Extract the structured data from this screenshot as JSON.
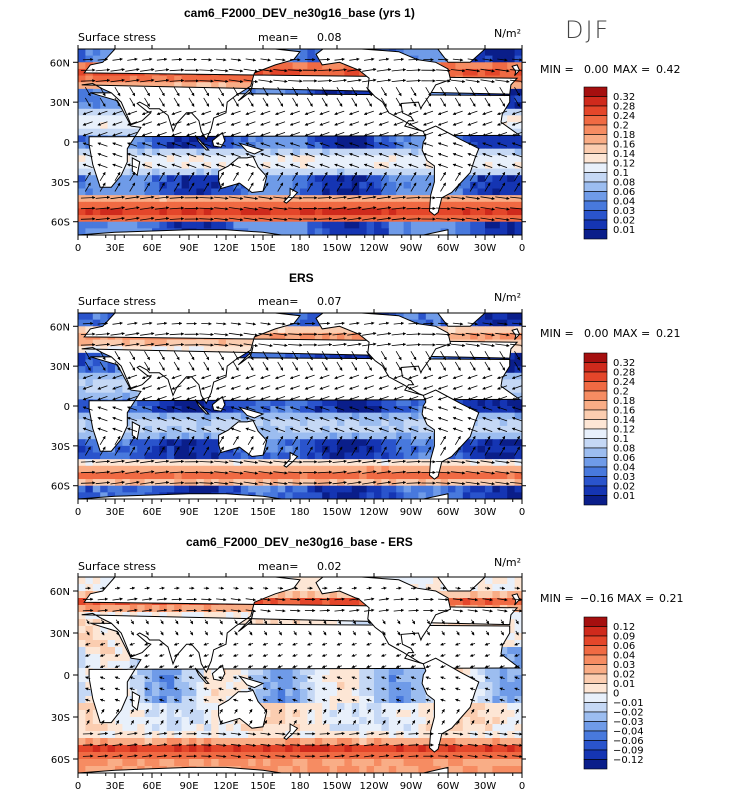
{
  "season_label": "DJF",
  "chart_data": [
    {
      "type": "heatmap",
      "title": "cam6_F2000_DEV_ne30g16_base (yrs 1)",
      "subtitle": "Surface stress",
      "mean_label": "mean=",
      "mean_value": "0.08",
      "units": "N/m²",
      "min_label": "MIN =",
      "min_value": "0.00",
      "max_label": "MAX =",
      "max_value": "0.42",
      "x_ticks": [
        "0",
        "30E",
        "60E",
        "90E",
        "120E",
        "150E",
        "180",
        "150W",
        "120W",
        "90W",
        "60W",
        "30W",
        "0"
      ],
      "y_ticks": [
        "60N",
        "30N",
        "0",
        "30S",
        "60S"
      ],
      "xlim": [
        0,
        360
      ],
      "ylim": [
        -70,
        70
      ],
      "colorbar": [
        "0.32",
        "0.28",
        "0.24",
        "0.2",
        "0.18",
        "0.16",
        "0.14",
        "0.12",
        "0.1",
        "0.08",
        "0.06",
        "0.04",
        "0.03",
        "0.02",
        "0.01"
      ],
      "colors": [
        "#a50f0f",
        "#cf2a1c",
        "#e4462a",
        "#f06a43",
        "#f68c62",
        "#f9ad86",
        "#fbcdb0",
        "#fde6d5",
        "#e8f0fb",
        "#c5d8f5",
        "#9cbdf0",
        "#6f9be8",
        "#4879dd",
        "#2a54cc",
        "#1535b3",
        "#0a1e8a"
      ]
    },
    {
      "type": "heatmap",
      "title": "ERS",
      "subtitle": "Surface stress",
      "mean_label": "mean=",
      "mean_value": "0.07",
      "units": "N/m²",
      "min_label": "MIN =",
      "min_value": "0.00",
      "max_label": "MAX =",
      "max_value": "0.21",
      "x_ticks": [
        "0",
        "30E",
        "60E",
        "90E",
        "120E",
        "150E",
        "180",
        "150W",
        "120W",
        "90W",
        "60W",
        "30W",
        "0"
      ],
      "y_ticks": [
        "60N",
        "30N",
        "0",
        "30S",
        "60S"
      ],
      "xlim": [
        0,
        360
      ],
      "ylim": [
        -70,
        70
      ],
      "colorbar": [
        "0.32",
        "0.28",
        "0.24",
        "0.2",
        "0.18",
        "0.16",
        "0.14",
        "0.12",
        "0.1",
        "0.08",
        "0.06",
        "0.04",
        "0.03",
        "0.02",
        "0.01"
      ],
      "colors": [
        "#a50f0f",
        "#cf2a1c",
        "#e4462a",
        "#f06a43",
        "#f68c62",
        "#f9ad86",
        "#fbcdb0",
        "#fde6d5",
        "#e8f0fb",
        "#c5d8f5",
        "#9cbdf0",
        "#6f9be8",
        "#4879dd",
        "#2a54cc",
        "#1535b3",
        "#0a1e8a"
      ]
    },
    {
      "type": "heatmap",
      "title": "cam6_F2000_DEV_ne30g16_base - ERS",
      "subtitle": "Surface stress",
      "mean_label": "mean=",
      "mean_value": "0.02",
      "units": "N/m²",
      "min_label": "MIN =",
      "min_value": "−0.16",
      "max_label": "MAX =",
      "max_value": "0.21",
      "x_ticks": [
        "0",
        "30E",
        "60E",
        "90E",
        "120E",
        "150E",
        "180",
        "150W",
        "120W",
        "90W",
        "60W",
        "30W",
        "0"
      ],
      "y_ticks": [
        "60N",
        "30N",
        "0",
        "30S",
        "60S"
      ],
      "xlim": [
        0,
        360
      ],
      "ylim": [
        -70,
        70
      ],
      "colorbar": [
        "0.12",
        "0.09",
        "0.06",
        "0.04",
        "0.03",
        "0.02",
        "0.01",
        "0",
        "−0.01",
        "−0.02",
        "−0.03",
        "−0.04",
        "−0.06",
        "−0.09",
        "−0.12"
      ],
      "colors": [
        "#a50f0f",
        "#cf2a1c",
        "#e4462a",
        "#f06a43",
        "#f68c62",
        "#f9ad86",
        "#fbcdb0",
        "#fde6d5",
        "#e8f0fb",
        "#c5d8f5",
        "#9cbdf0",
        "#6f9be8",
        "#4879dd",
        "#2a54cc",
        "#1535b3",
        "#0a1e8a"
      ]
    }
  ]
}
